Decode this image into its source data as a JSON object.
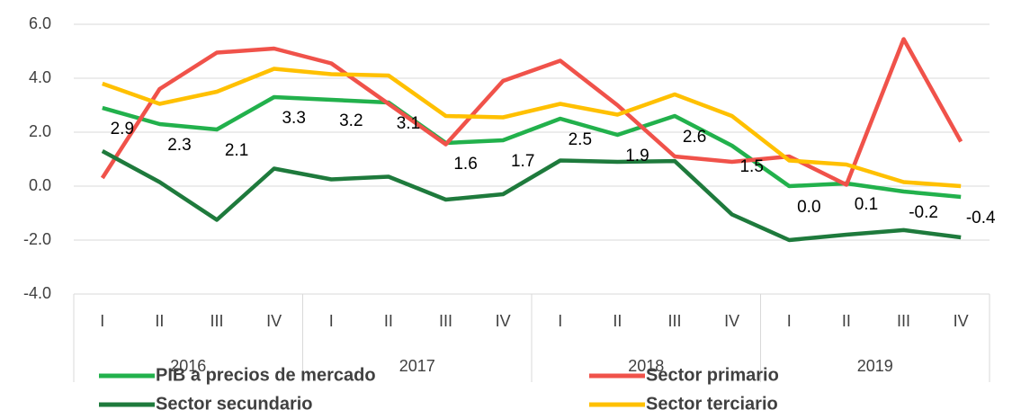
{
  "chart_data": {
    "type": "line",
    "categories": [
      "I",
      "II",
      "III",
      "IV",
      "I",
      "II",
      "III",
      "IV",
      "I",
      "II",
      "III",
      "IV",
      "I",
      "II",
      "III",
      "IV"
    ],
    "category_groups": [
      "2016",
      "2017",
      "2018",
      "2019"
    ],
    "series": [
      {
        "name": "PIB a precios de mercado",
        "color": "#22b14c",
        "values": [
          2.9,
          2.3,
          2.1,
          3.3,
          3.2,
          3.1,
          1.6,
          1.7,
          2.5,
          1.9,
          2.6,
          1.5,
          0.0,
          0.1,
          -0.2,
          -0.4
        ],
        "value_labels": [
          "2.9",
          "2.3",
          "2.1",
          "3.3",
          "3.2",
          "3.1",
          "1.6",
          "1.7",
          "2.5",
          "1.9",
          "2.6",
          "1.5",
          "0.0",
          "0.1",
          "-0.2",
          "-0.4"
        ]
      },
      {
        "name": "Sector primario",
        "color": "#f0524a",
        "values": [
          0.3,
          3.6,
          4.95,
          5.1,
          4.55,
          3.05,
          1.55,
          3.9,
          4.65,
          3.0,
          1.1,
          0.9,
          1.1,
          0.05,
          5.45,
          1.65
        ]
      },
      {
        "name": "Sector secundario",
        "color": "#1e7a3c",
        "values": [
          1.3,
          0.15,
          -1.25,
          0.65,
          0.25,
          0.35,
          -0.5,
          -0.3,
          0.95,
          0.9,
          0.93,
          -1.05,
          -2.0,
          -1.8,
          -1.63,
          -1.9
        ]
      },
      {
        "name": "Sector terciario",
        "color": "#ffc000",
        "values": [
          3.8,
          3.05,
          3.5,
          4.35,
          4.15,
          4.1,
          2.6,
          2.55,
          3.05,
          2.65,
          3.4,
          2.6,
          0.95,
          0.8,
          0.15,
          0.0
        ]
      }
    ],
    "ylim": [
      -4,
      6
    ],
    "yticks": [
      {
        "value": -4,
        "label": "-4.0"
      },
      {
        "value": -2,
        "label": "-2.0"
      },
      {
        "value": 0,
        "label": "0.0"
      },
      {
        "value": 2,
        "label": "2.0"
      },
      {
        "value": 4,
        "label": "4.0"
      },
      {
        "value": 6,
        "label": "6.0"
      }
    ],
    "grid": true,
    "legend": "bottom"
  }
}
